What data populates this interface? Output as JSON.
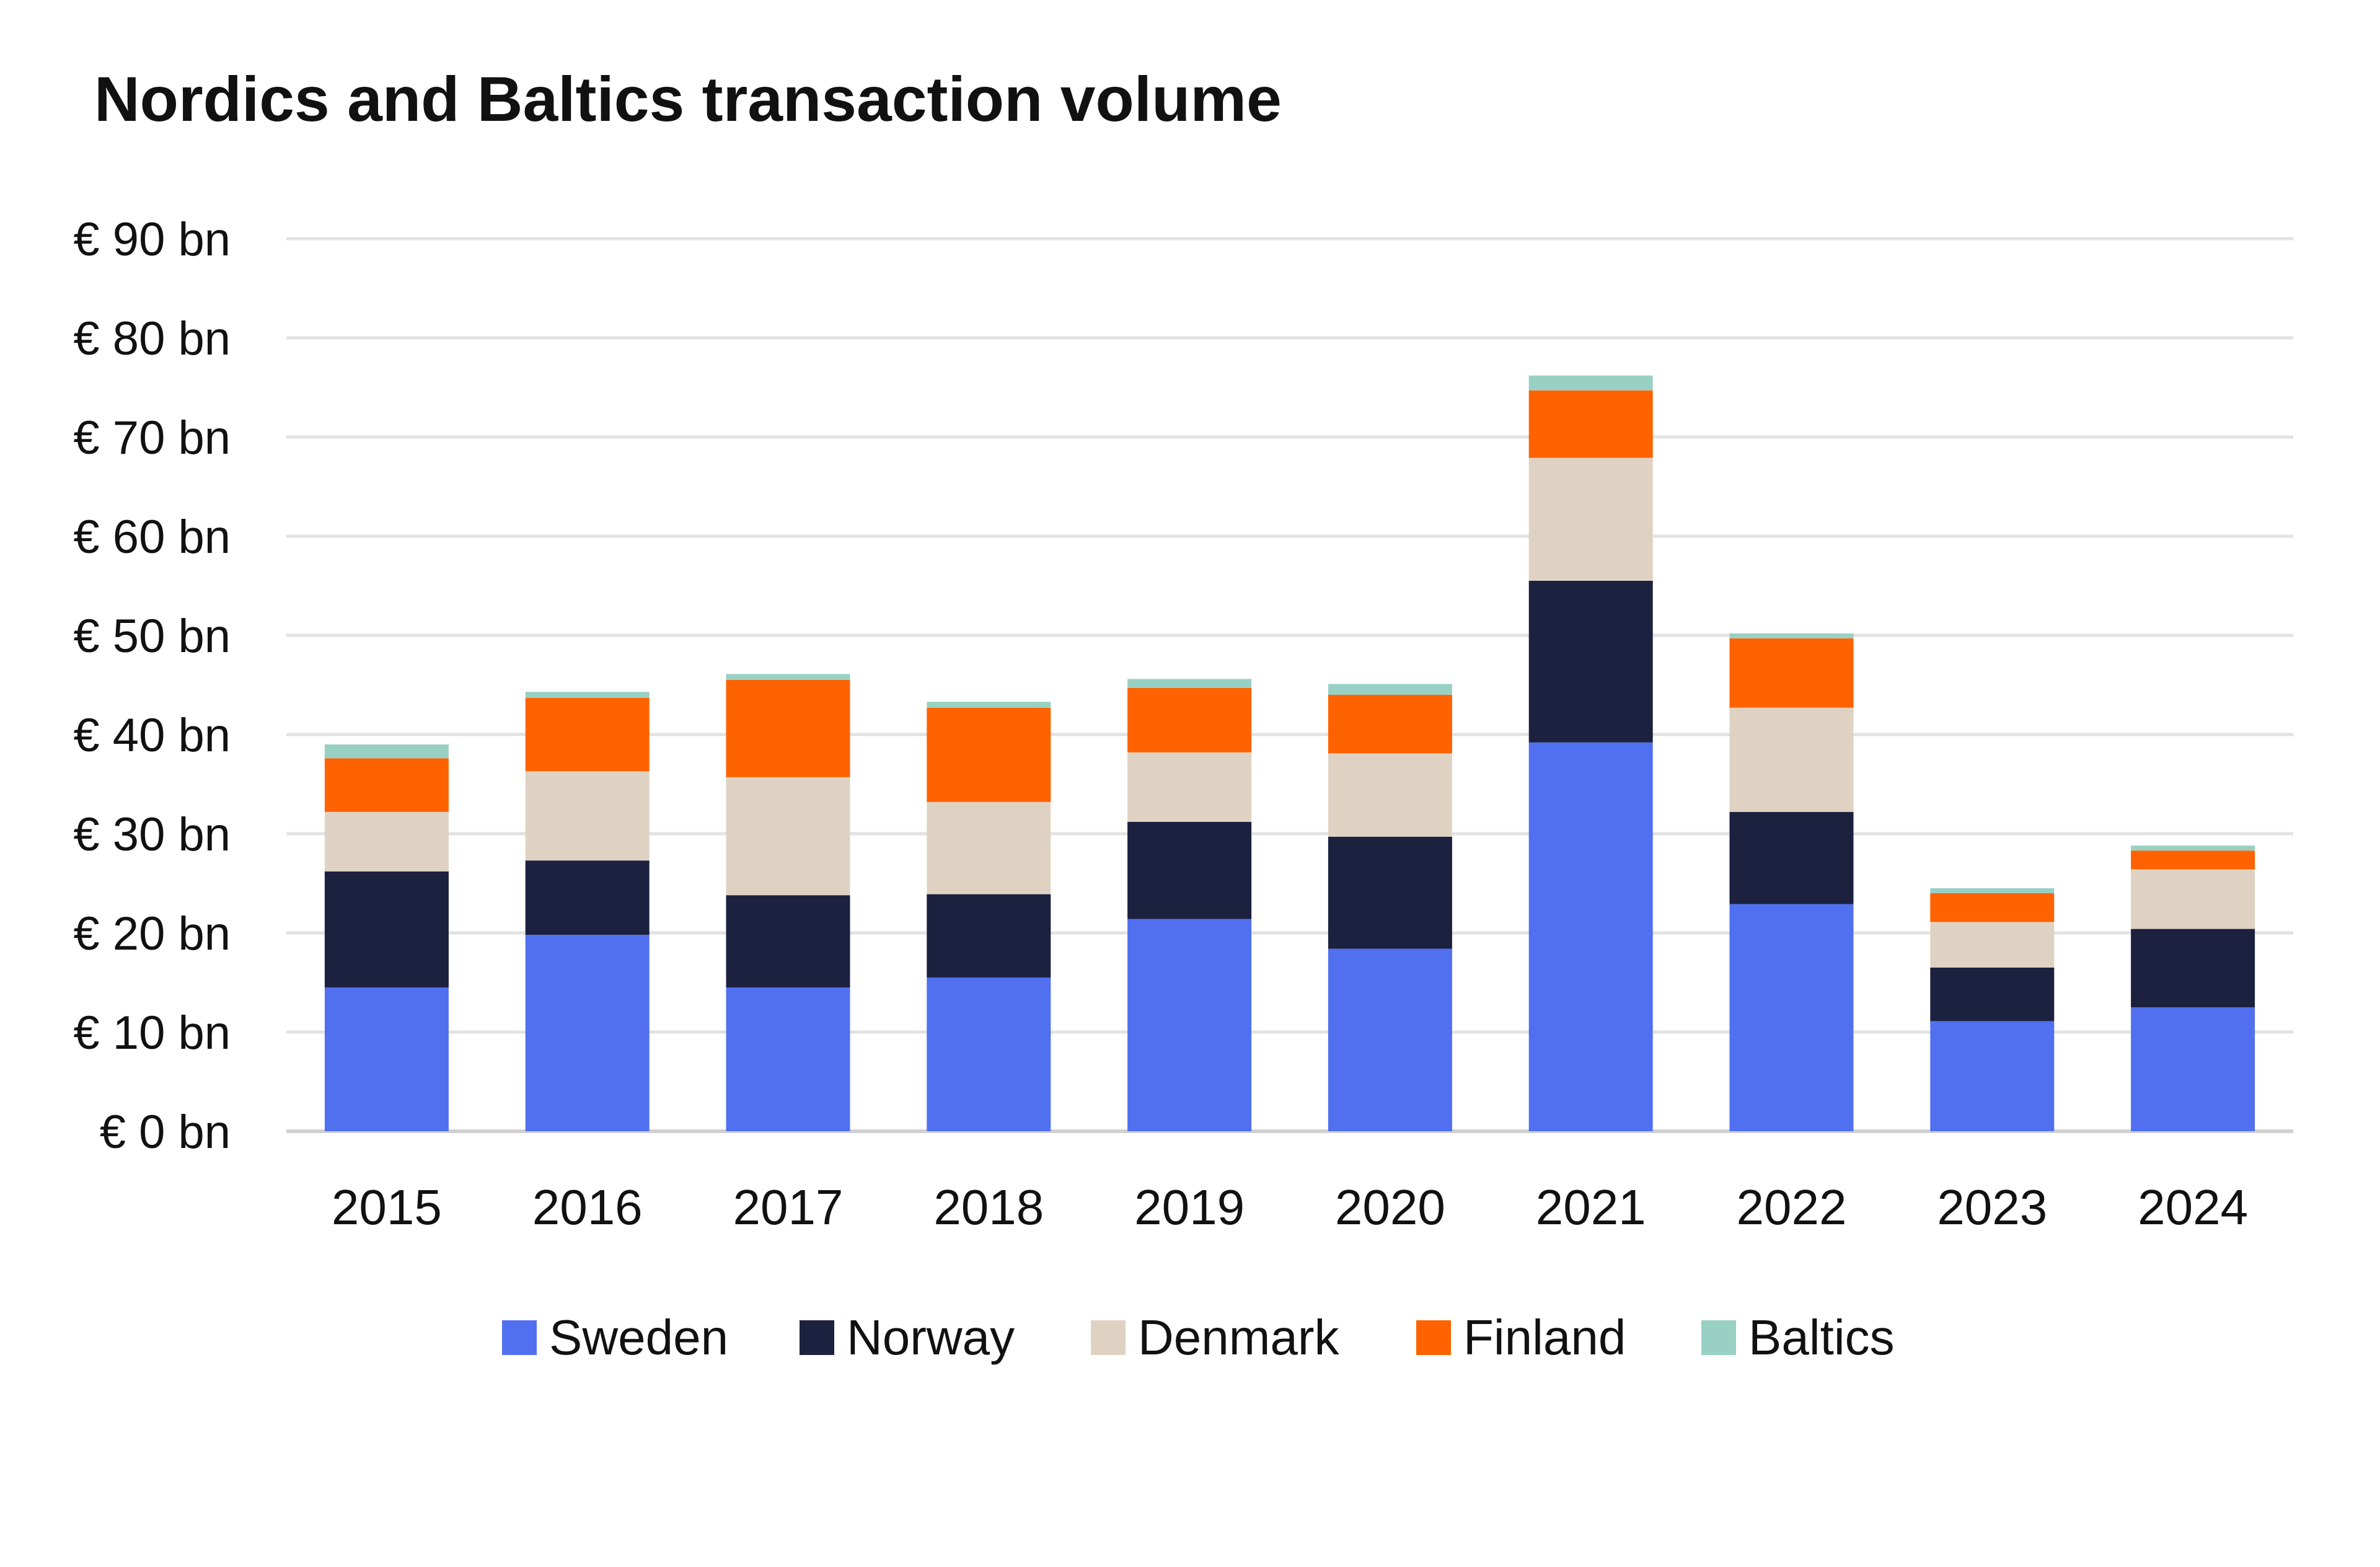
{
  "chart_data": {
    "type": "bar",
    "stacked": true,
    "title": "Nordics and Baltics transaction volume",
    "xlabel": "",
    "ylabel": "",
    "ylim": [
      0,
      90
    ],
    "grid": true,
    "legend_position": "bottom-center",
    "categories": [
      "2015",
      "2016",
      "2017",
      "2018",
      "2019",
      "2020",
      "2021",
      "2022",
      "2023",
      "2024"
    ],
    "y_ticks": [
      {
        "value": 0,
        "label": "€ 0 bn"
      },
      {
        "value": 10,
        "label": "€ 10 bn"
      },
      {
        "value": 20,
        "label": "€ 20 bn"
      },
      {
        "value": 30,
        "label": "€ 30 bn"
      },
      {
        "value": 40,
        "label": "€ 40 bn"
      },
      {
        "value": 50,
        "label": "€ 50 bn"
      },
      {
        "value": 60,
        "label": "€ 60 bn"
      },
      {
        "value": 70,
        "label": "€ 70 bn"
      },
      {
        "value": 80,
        "label": "€ 80 bn"
      },
      {
        "value": 90,
        "label": "€ 90 bn"
      }
    ],
    "series": [
      {
        "name": "Sweden",
        "color": "#5170f0",
        "values": [
          14.5,
          19.8,
          14.5,
          15.5,
          21.4,
          18.4,
          39.2,
          22.9,
          11.1,
          12.5
        ]
      },
      {
        "name": "Norway",
        "color": "#1c2140",
        "values": [
          11.7,
          7.5,
          9.3,
          8.4,
          9.8,
          11.3,
          16.3,
          9.3,
          5.4,
          7.9
        ]
      },
      {
        "name": "Denmark",
        "color": "#e0d2c2",
        "values": [
          6.0,
          9.0,
          11.9,
          9.3,
          7.0,
          8.4,
          12.4,
          10.5,
          4.6,
          6.0
        ]
      },
      {
        "name": "Finland",
        "color": "#ff6200",
        "values": [
          5.4,
          7.4,
          9.8,
          9.5,
          6.5,
          5.9,
          6.8,
          7.0,
          2.9,
          1.9
        ]
      },
      {
        "name": "Baltics",
        "color": "#98d0c4",
        "values": [
          1.4,
          0.6,
          0.6,
          0.6,
          0.9,
          1.1,
          1.5,
          0.5,
          0.5,
          0.5
        ]
      }
    ]
  }
}
